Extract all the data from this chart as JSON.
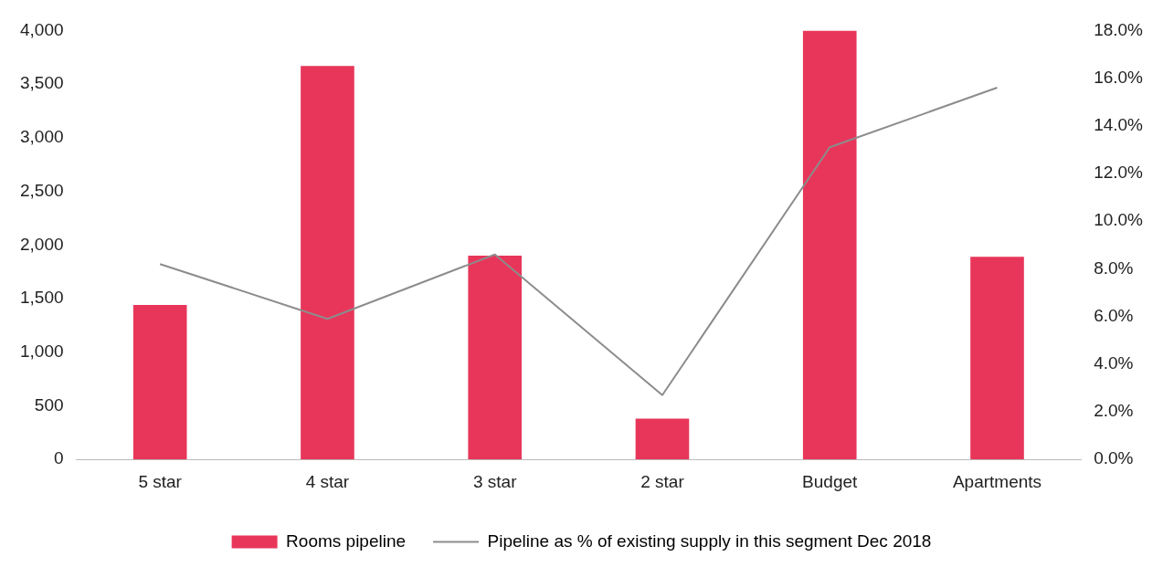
{
  "chart_data": {
    "type": "bar",
    "categories": [
      "5 star",
      "4 star",
      "3 star",
      "2 star",
      "Budget",
      "Apartments"
    ],
    "series": [
      {
        "name": "Rooms pipeline",
        "color": "#e8365a",
        "values": [
          1440,
          3670,
          1900,
          380,
          4000,
          1890
        ]
      },
      {
        "name": "Pipeline as % of existing supply in this segment Dec 2018",
        "type": "line",
        "axis": "y2",
        "color": "#8c8c8c",
        "values": [
          8.2,
          5.9,
          8.6,
          2.7,
          13.1,
          15.6
        ]
      }
    ],
    "ylim": [
      0,
      4000
    ],
    "yticks": [
      {
        "value": 0,
        "label": "0"
      },
      {
        "value": 500,
        "label": "500"
      },
      {
        "value": 1000,
        "label": "1,000"
      },
      {
        "value": 1500,
        "label": "1,500"
      },
      {
        "value": 2000,
        "label": "2,000"
      },
      {
        "value": 2500,
        "label": "2,500"
      },
      {
        "value": 3000,
        "label": "3,000"
      },
      {
        "value": 3500,
        "label": "3,500"
      },
      {
        "value": 4000,
        "label": "4,000"
      }
    ],
    "y2lim": [
      0,
      18
    ],
    "y2ticks": [
      {
        "value": 0,
        "label": "0.0%"
      },
      {
        "value": 2,
        "label": "2.0%"
      },
      {
        "value": 4,
        "label": "4.0%"
      },
      {
        "value": 6,
        "label": "6.0%"
      },
      {
        "value": 8,
        "label": "8.0%"
      },
      {
        "value": 10,
        "label": "10.0%"
      },
      {
        "value": 12,
        "label": "12.0%"
      },
      {
        "value": 14,
        "label": "14.0%"
      },
      {
        "value": 16,
        "label": "16.0%"
      },
      {
        "value": 18,
        "label": "18.0%"
      }
    ],
    "grid": false,
    "legend": "bottom",
    "marker": "none",
    "line_style": "solid"
  }
}
